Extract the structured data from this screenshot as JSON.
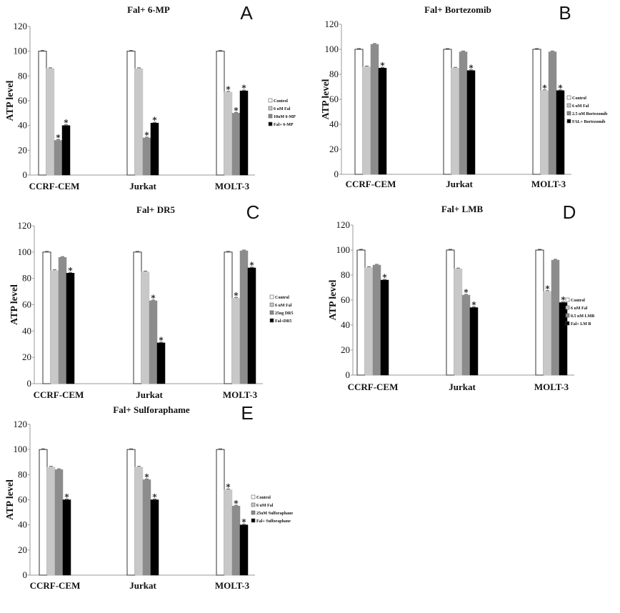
{
  "colors": {
    "control": "#ffffff",
    "fal": "#c8c8c8",
    "single_agent": "#8c8c8c",
    "combination": "#000000",
    "axis": "#999999",
    "bar_stroke": "#333333"
  },
  "chart_data": [
    {
      "type": "bar",
      "letter": "A",
      "title": "Fal+ 6-MP",
      "ylabel": "ATP level",
      "xlabel": "",
      "ylim": [
        0,
        120
      ],
      "yticks": [
        "0",
        "20",
        "40",
        "60",
        "80",
        "100",
        "120"
      ],
      "categories": [
        "CCRF-CEM",
        "Jurkat",
        "MOLT-3"
      ],
      "legend_position": "right",
      "series": [
        {
          "name": "Control",
          "values": [
            100,
            100,
            100
          ],
          "significant": [
            false,
            false,
            false
          ]
        },
        {
          "name": "6 uM Fal",
          "values": [
            86,
            86,
            67
          ],
          "significant": [
            false,
            false,
            true
          ]
        },
        {
          "name": "10uM 6-MP",
          "values": [
            28,
            30,
            50
          ],
          "significant": [
            true,
            true,
            true
          ]
        },
        {
          "name": "Fal+ 6-MP",
          "values": [
            40,
            42,
            68
          ],
          "significant": [
            true,
            true,
            true
          ]
        }
      ],
      "significance_marker": "∗"
    },
    {
      "type": "bar",
      "letter": "B",
      "title": "Fal+ Bortezomib",
      "ylabel": "ATP level",
      "xlabel": "",
      "ylim": [
        0,
        120
      ],
      "yticks": [
        "0",
        "20",
        "40",
        "60",
        "80",
        "100",
        "120"
      ],
      "categories": [
        "CCRF-CEM",
        "Jurkat",
        "MOLT-3"
      ],
      "legend_position": "right",
      "series": [
        {
          "name": "Control",
          "values": [
            100,
            100,
            100
          ],
          "significant": [
            false,
            false,
            false
          ]
        },
        {
          "name": "6 uM Fal",
          "values": [
            86,
            85,
            67
          ],
          "significant": [
            false,
            false,
            true
          ]
        },
        {
          "name": "2.5 nM Bortezomib",
          "values": [
            104,
            98,
            98
          ],
          "significant": [
            false,
            false,
            false
          ]
        },
        {
          "name": "FAL+ Bortezomib",
          "values": [
            85,
            83,
            67
          ],
          "significant": [
            true,
            true,
            true
          ]
        }
      ],
      "significance_marker": "∗"
    },
    {
      "type": "bar",
      "letter": "C",
      "title": "Fal+ DR5",
      "ylabel": "ATP level",
      "xlabel": "",
      "ylim": [
        0,
        120
      ],
      "yticks": [
        "0",
        "20",
        "40",
        "60",
        "80",
        "100",
        "120"
      ],
      "categories": [
        "CCRF-CEM",
        "Jurkat",
        "MOLT-3"
      ],
      "legend_position": "right",
      "series": [
        {
          "name": "Control",
          "values": [
            100,
            100,
            100
          ],
          "significant": [
            false,
            false,
            false
          ]
        },
        {
          "name": "6 uM Fal",
          "values": [
            86,
            85,
            65
          ],
          "significant": [
            false,
            false,
            true
          ]
        },
        {
          "name": "25ng DR5",
          "values": [
            96,
            63,
            101
          ],
          "significant": [
            false,
            true,
            false
          ]
        },
        {
          "name": "Fal+DR5",
          "values": [
            84,
            31,
            88
          ],
          "significant": [
            true,
            true,
            true
          ]
        }
      ],
      "significance_marker": "∗"
    },
    {
      "type": "bar",
      "letter": "D",
      "title": "Fal+ LMB",
      "ylabel": "ATP level",
      "xlabel": "",
      "ylim": [
        0,
        120
      ],
      "yticks": [
        "0",
        "20",
        "40",
        "60",
        "80",
        "100",
        "120"
      ],
      "categories": [
        "CCRF-CEM",
        "Jurkat",
        "MOLT-3"
      ],
      "legend_position": "right",
      "series": [
        {
          "name": "Control",
          "values": [
            100,
            100,
            100
          ],
          "significant": [
            false,
            false,
            false
          ]
        },
        {
          "name": "6 uM Fal",
          "values": [
            86,
            85,
            67
          ],
          "significant": [
            false,
            false,
            true
          ]
        },
        {
          "name": "0.5 nM LMB",
          "values": [
            88,
            64,
            92
          ],
          "significant": [
            false,
            true,
            false
          ]
        },
        {
          "name": "Fal+ LM B",
          "values": [
            76,
            54,
            58
          ],
          "significant": [
            true,
            true,
            true
          ]
        }
      ],
      "significance_marker": "∗"
    },
    {
      "type": "bar",
      "letter": "E",
      "title": "Fal+ Sulforaphame",
      "ylabel": "ATP level",
      "xlabel": "",
      "ylim": [
        0,
        120
      ],
      "yticks": [
        "0",
        "20",
        "40",
        "60",
        "80",
        "100",
        "120"
      ],
      "categories": [
        "CCRF-CEM",
        "Jurkat",
        "MOLT-3"
      ],
      "legend_position": "right",
      "series": [
        {
          "name": "Control",
          "values": [
            100,
            100,
            100
          ],
          "significant": [
            false,
            false,
            false
          ]
        },
        {
          "name": "6 uM Fal",
          "values": [
            86,
            86,
            68
          ],
          "significant": [
            false,
            false,
            true
          ]
        },
        {
          "name": "25uM Sulforaphane",
          "values": [
            84,
            76,
            55
          ],
          "significant": [
            false,
            true,
            true
          ]
        },
        {
          "name": "Fal+ Sulforaphane",
          "values": [
            60,
            60,
            40
          ],
          "significant": [
            true,
            true,
            true
          ]
        }
      ],
      "significance_marker": "∗"
    }
  ]
}
